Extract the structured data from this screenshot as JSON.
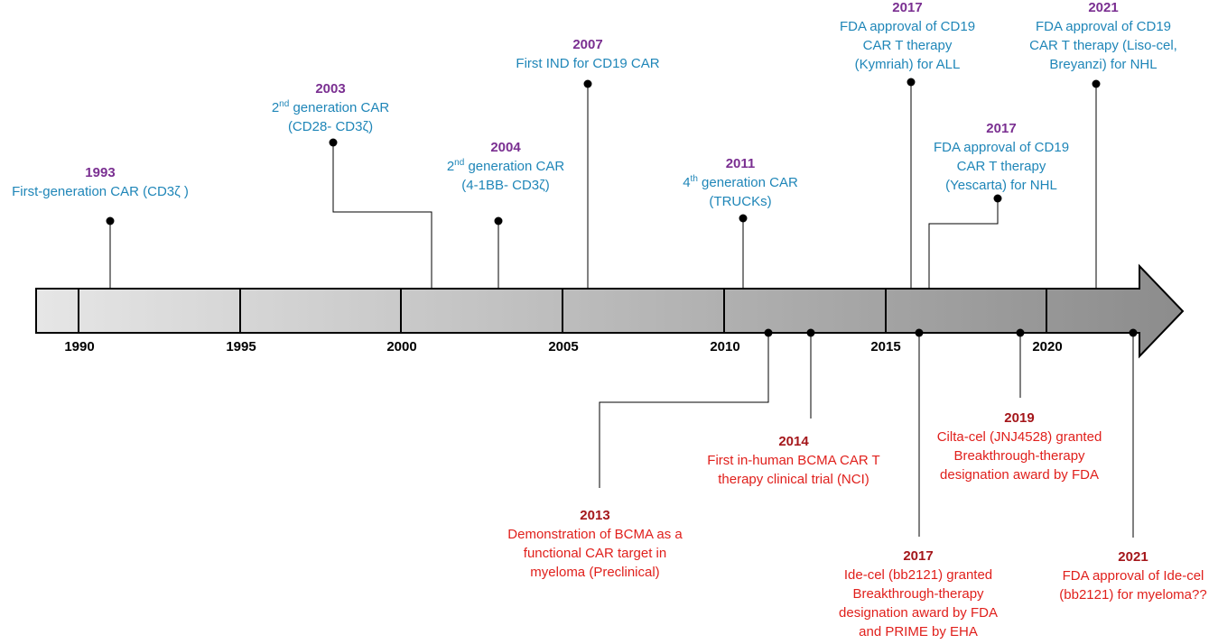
{
  "timeline": {
    "ticks": [
      "1990",
      "1995",
      "2000",
      "2005",
      "2010",
      "2015",
      "2020"
    ]
  },
  "events_top": [
    {
      "year": "1993",
      "lines": [
        "First-generation CAR (CD3ζ )"
      ]
    },
    {
      "year": "2003",
      "lines": [
        "2nd generation CAR",
        "(CD28- CD3ζ)"
      ]
    },
    {
      "year": "2004",
      "lines": [
        "2nd generation CAR",
        "(4-1BB- CD3ζ)"
      ]
    },
    {
      "year": "2007",
      "lines": [
        "First IND for CD19 CAR"
      ]
    },
    {
      "year": "2011",
      "lines": [
        "4th generation CAR",
        "(TRUCKs)"
      ]
    },
    {
      "year": "2017",
      "lines": [
        "FDA approval of CD19",
        "CAR T therapy",
        "(Kymriah) for ALL"
      ]
    },
    {
      "year": "2017",
      "lines": [
        "FDA approval of CD19",
        "CAR T therapy",
        "(Yescarta) for NHL"
      ]
    },
    {
      "year": "2021",
      "lines": [
        "FDA approval of CD19",
        "CAR T therapy (Liso-cel,",
        "Breyanzi) for NHL"
      ]
    }
  ],
  "events_bottom": [
    {
      "year": "2013",
      "lines": [
        "Demonstration of BCMA as a",
        "functional CAR target in",
        "myeloma (Preclinical)"
      ]
    },
    {
      "year": "2014",
      "lines": [
        "First in-human BCMA CAR T",
        "therapy clinical trial (NCI)"
      ]
    },
    {
      "year": "2017",
      "lines": [
        "Ide-cel (bb2121) granted",
        "Breakthrough-therapy",
        "designation award by FDA",
        "and PRIME by EHA"
      ]
    },
    {
      "year": "2019",
      "lines": [
        "Cilta-cel (JNJ4528) granted",
        "Breakthrough-therapy",
        "designation award by FDA"
      ]
    },
    {
      "year": "2021",
      "lines": [
        "FDA approval of Ide-cel",
        "(bb2121) for myeloma??"
      ]
    }
  ],
  "colors": {
    "top_year": "#7a2f91",
    "top_text": "#1f86b8",
    "bottom_year": "#a4161a",
    "bottom_text": "#e0201c"
  }
}
